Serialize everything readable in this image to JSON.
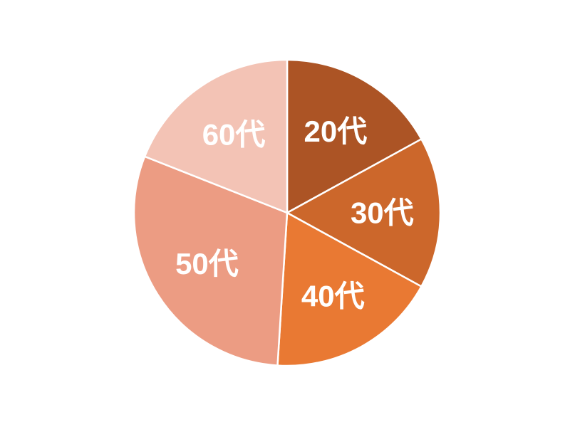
{
  "page": {
    "background_color": "#FFFFFF"
  },
  "chart_data": {
    "type": "pie",
    "title": "",
    "labels": [
      "20代",
      "30代",
      "40代",
      "50代",
      "60代"
    ],
    "values": [
      17,
      16,
      18,
      30,
      19
    ],
    "unit": "percent (estimated from slice angles; no numeric labels are shown in the chart)",
    "colors": [
      "#AC5425",
      "#CC672B",
      "#E97933",
      "#EC9C83",
      "#F3C3B5"
    ],
    "start_angle_deg": 0,
    "direction": "clockwise",
    "slice_label_color": "#FFFFFF",
    "separator_color": "#FFFFFF",
    "legend": "none"
  }
}
